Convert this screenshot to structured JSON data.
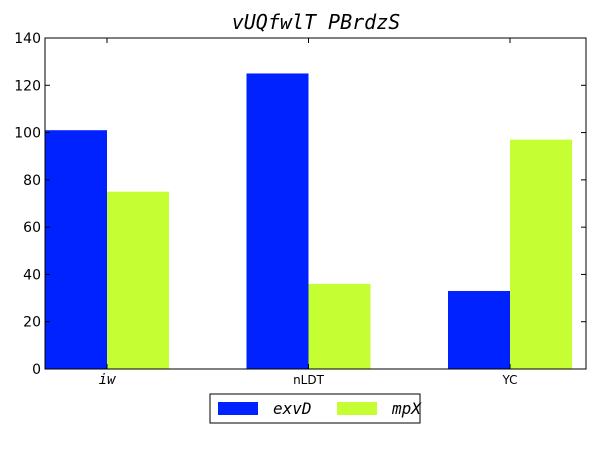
{
  "chart_data": {
    "type": "bar",
    "title": "vUQfwlT PBrdzS",
    "xlabel": "",
    "ylabel": "",
    "categories": [
      "iw",
      "nLDT",
      "YC"
    ],
    "category_label_italic": [
      true,
      false,
      false
    ],
    "series": [
      {
        "name": "exvD",
        "values": [
          101,
          125,
          33
        ],
        "color": "#0022ff"
      },
      {
        "name": "mpX",
        "values": [
          75,
          36,
          97
        ],
        "color": "#c5ff33"
      }
    ],
    "ylim": [
      0,
      140
    ],
    "yticks": [
      0,
      20,
      40,
      60,
      80,
      100,
      120,
      140
    ],
    "grid": false,
    "legend": "bottom-center"
  }
}
